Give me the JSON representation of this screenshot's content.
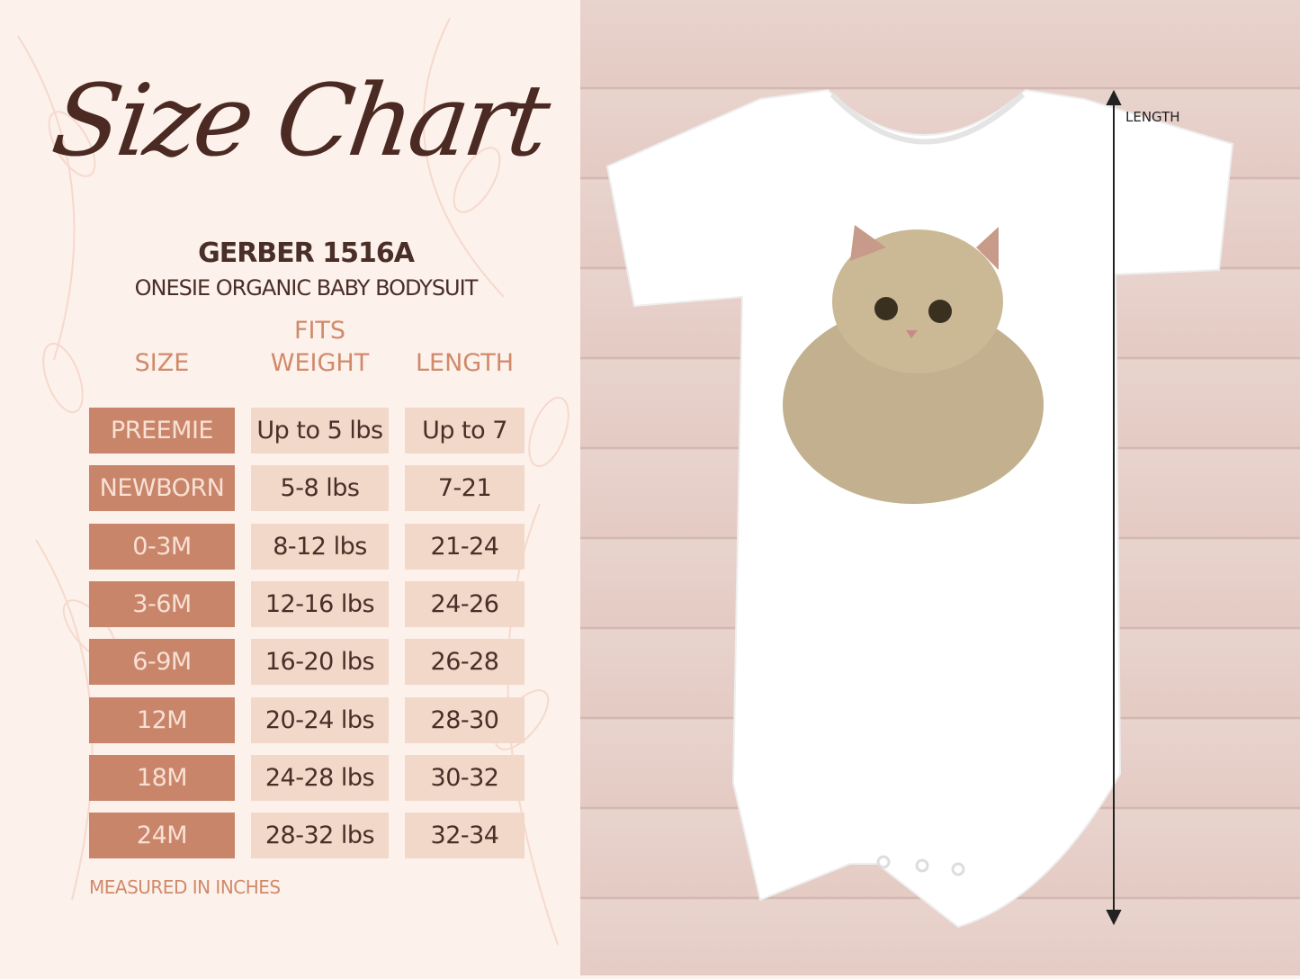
{
  "title": "Size Chart",
  "product": {
    "model": "GERBER 1516A",
    "description": "ONESIE ORGANIC BABY BODYSUIT"
  },
  "headers": {
    "size": "SIZE",
    "fits": "FITS",
    "weight": "WEIGHT",
    "length": "LENGTH"
  },
  "rows": [
    {
      "size": "PREEMIE",
      "weight": "Up to 5 lbs",
      "length": "Up to 7"
    },
    {
      "size": "NEWBORN",
      "weight": "5-8 lbs",
      "length": "7-21"
    },
    {
      "size": "0-3M",
      "weight": "8-12 lbs",
      "length": "21-24"
    },
    {
      "size": "3-6M",
      "weight": "12-16 lbs",
      "length": "24-26"
    },
    {
      "size": "6-9M",
      "weight": "16-20 lbs",
      "length": "26-28"
    },
    {
      "size": "12M",
      "weight": "20-24 lbs",
      "length": "28-30"
    },
    {
      "size": "18M",
      "weight": "24-28 lbs",
      "length": "30-32"
    },
    {
      "size": "24M",
      "weight": "28-32 lbs",
      "length": "32-34"
    }
  ],
  "note": "MEASURED IN INCHES",
  "diagram": {
    "length_label": "LENGTH"
  },
  "colors": {
    "size_cell": "#c8856a",
    "value_cell": "#f2d8c8",
    "header": "#d08a6a",
    "text": "#4a2e28",
    "background": "#fdf1ec"
  }
}
